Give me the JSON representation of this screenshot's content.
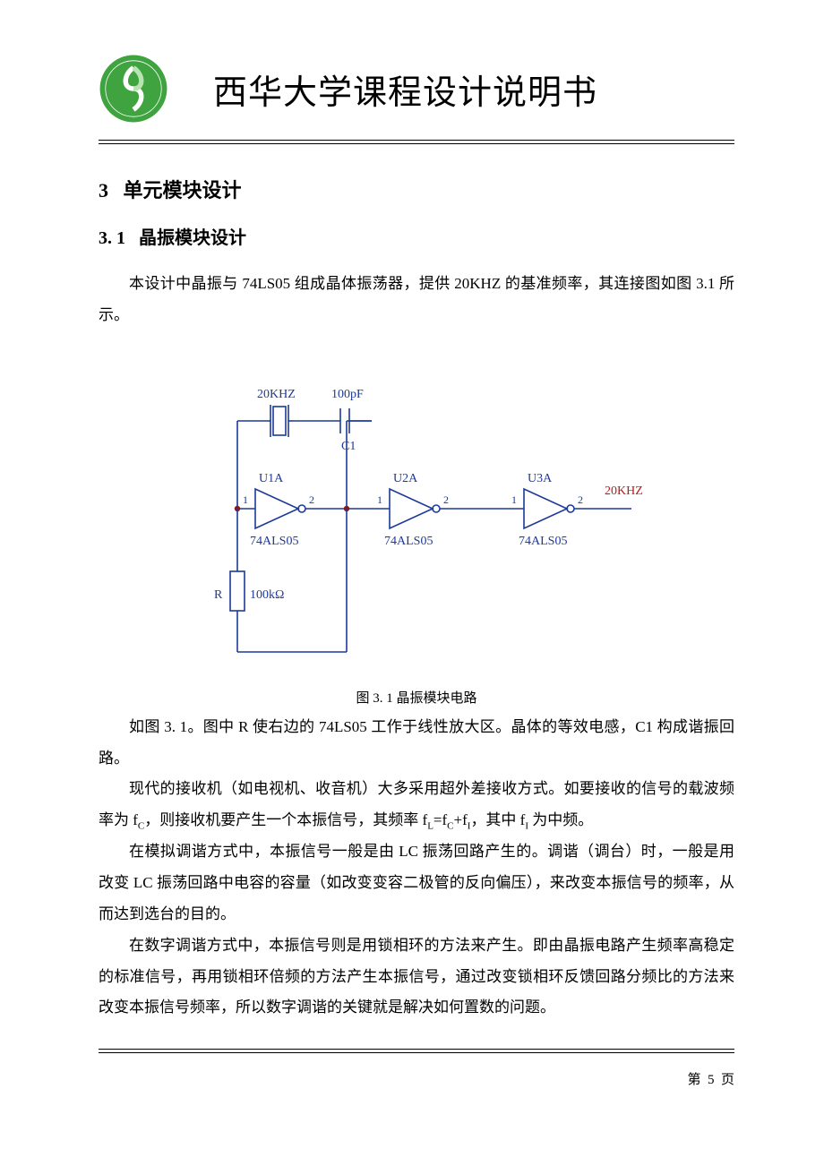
{
  "header": {
    "title": "西华大学课程设计说明书"
  },
  "section": {
    "number": "3",
    "title": "单元模块设计"
  },
  "subsection": {
    "number": "3. 1",
    "title": "晶振模块设计"
  },
  "para1": "本设计中晶振与 74LS05 组成晶体振荡器，提供 20KHZ 的基准频率，其连接图如图 3.1 所示。",
  "figure": {
    "caption": "图 3. 1   晶振模块电路",
    "crystal_label": "20KHZ",
    "cap_label": "100pF",
    "cap_name": "C1",
    "output_label": "20KHZ",
    "resistor_label_left": "R",
    "resistor_label_right": "100kΩ",
    "gates": [
      {
        "ref": "U1A",
        "part": "74ALS05",
        "pin_in": "1",
        "pin_out": "2"
      },
      {
        "ref": "U2A",
        "part": "74ALS05",
        "pin_in": "1",
        "pin_out": "2"
      },
      {
        "ref": "U3A",
        "part": "74ALS05",
        "pin_in": "1",
        "pin_out": "2"
      }
    ],
    "style": {
      "wire_color": "#1c3a9a",
      "label_color": "#1c3a9a",
      "output_color": "#c01818",
      "junction_color": "#8a1616",
      "stroke_width": 1.6,
      "font_family": "Times New Roman",
      "font_size_label": 14,
      "font_size_pin": 12
    }
  },
  "para2": "如图 3. 1。图中 R 使右边的 74LS05 工作于线性放大区。晶体的等效电感，C1 构成谐振回路。",
  "para3_prefix": "现代的接收机（如电视机、收音机）大多采用超外差接收方式。如要接收的信号的载波频率为 f",
  "para3_c": "C",
  "para3_mid1": "，则接收机要产生一个本振信号，其频率 f",
  "para3_l": "L",
  "para3_eq": "=f",
  "para3_c2": "C",
  "para3_plus": "+f",
  "para3_i": "I",
  "para3_mid2": "，其中 f",
  "para3_i2": "I",
  "para3_suffix": " 为中频。",
  "para4": "在模拟调谐方式中，本振信号一般是由 LC 振荡回路产生的。调谐（调台）时，一般是用改变 LC 振荡回路中电容的容量（如改变变容二极管的反向偏压），来改变本振信号的频率，从而达到选台的目的。",
  "para5": "在数字调谐方式中，本振信号则是用锁相环的方法来产生。即由晶振电路产生频率高稳定的标准信号，再用锁相环倍频的方法产生本振信号，通过改变锁相环反馈回路分频比的方法来改变本振信号频率，所以数字调谐的关键就是解决如何置数的问题。",
  "page": {
    "prefix": "第",
    "num": "5",
    "suffix": "页"
  }
}
